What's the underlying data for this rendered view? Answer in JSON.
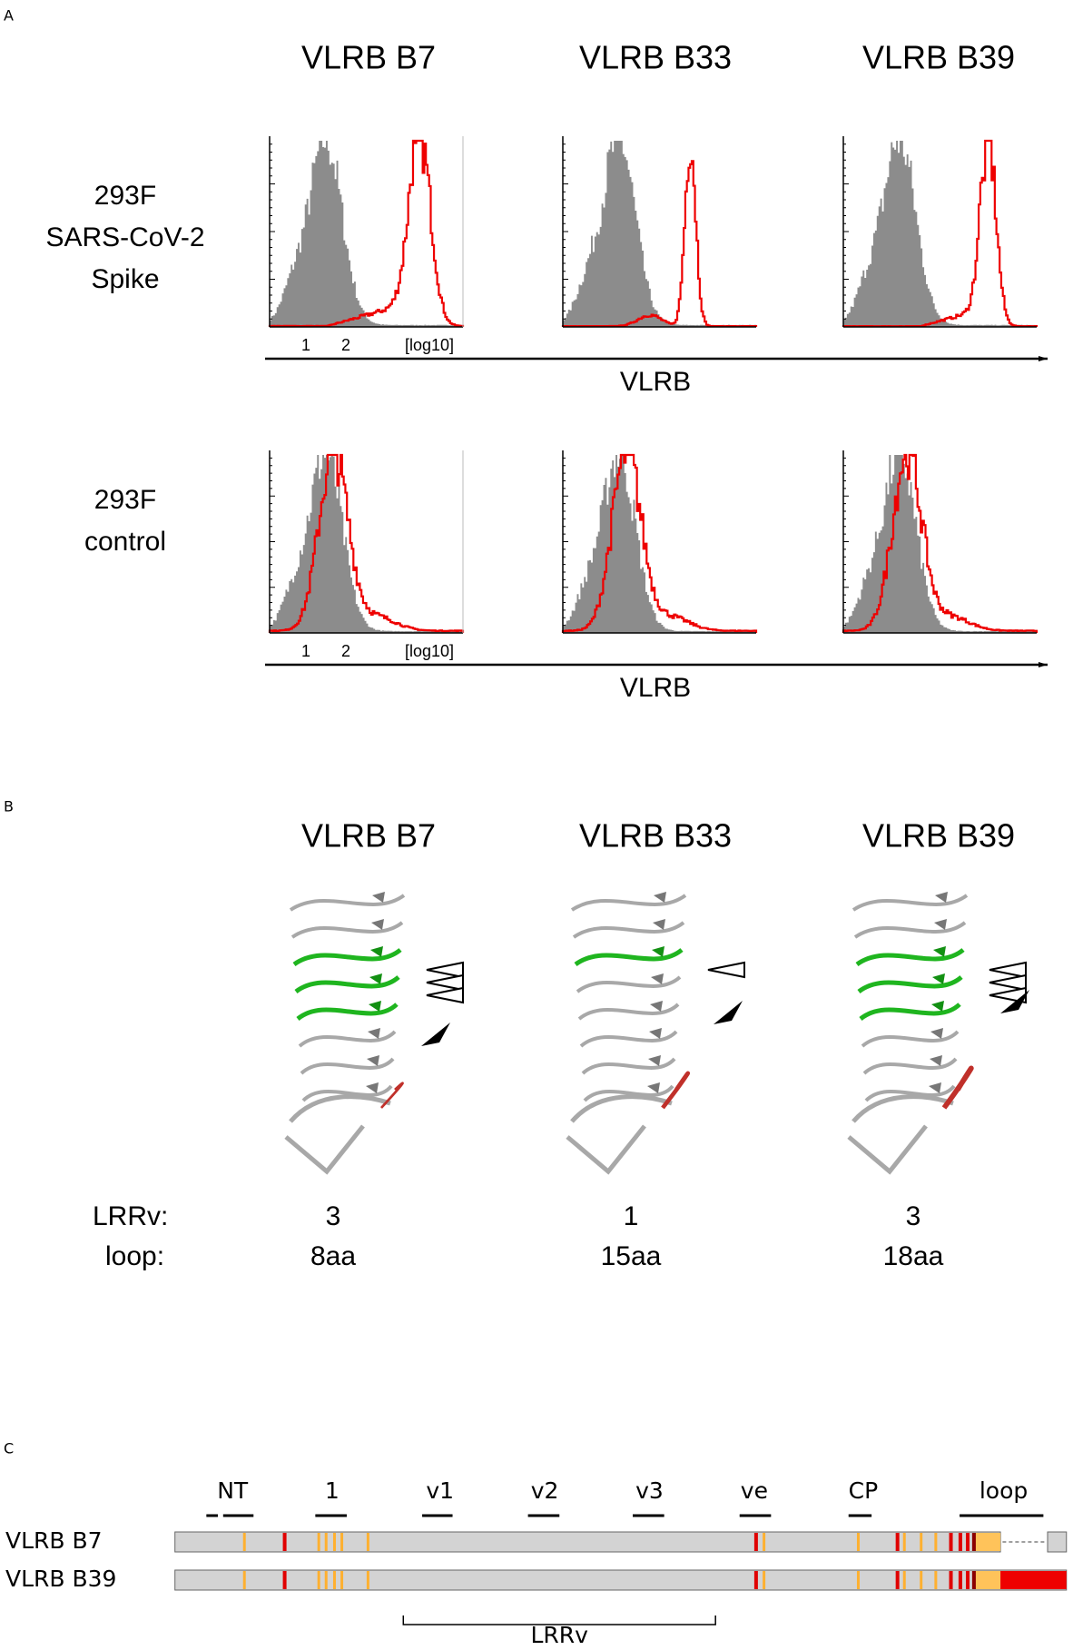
{
  "panel_a": {
    "label": "A",
    "columns": [
      "VLRB B7",
      "VLRB B33",
      "VLRB B39"
    ],
    "rows": [
      {
        "lines": [
          "293F",
          "SARS-CoV-2",
          "Spike"
        ]
      },
      {
        "lines": [
          "293F",
          "control"
        ]
      }
    ],
    "ticks": [
      "1",
      "2",
      "[log10]"
    ],
    "axis_label": "VLRB"
  },
  "panel_b": {
    "label": "B",
    "columns": [
      "VLRB B7",
      "VLRB B33",
      "VLRB B39"
    ],
    "lrrv_label": "LRRv:",
    "loop_label": "loop:",
    "lrrv": [
      3,
      1,
      3
    ],
    "loop": [
      "8aa",
      "15aa",
      "18aa"
    ]
  },
  "panel_c": {
    "label": "C",
    "regions": [
      "NT",
      "1",
      "v1",
      "v2",
      "v3",
      "ve",
      "CP",
      "loop"
    ],
    "rows": [
      "VLRB B7",
      "VLRB B39"
    ],
    "bracket_label": "LRRv"
  }
}
